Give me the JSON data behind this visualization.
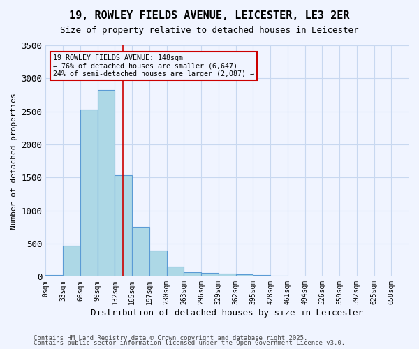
{
  "title": "19, ROWLEY FIELDS AVENUE, LEICESTER, LE3 2ER",
  "subtitle": "Size of property relative to detached houses in Leicester",
  "xlabel": "Distribution of detached houses by size in Leicester",
  "ylabel": "Number of detached properties",
  "bin_labels": [
    "0sqm",
    "33sqm",
    "66sqm",
    "99sqm",
    "132sqm",
    "165sqm",
    "197sqm",
    "230sqm",
    "263sqm",
    "296sqm",
    "329sqm",
    "362sqm",
    "395sqm",
    "428sqm",
    "461sqm",
    "494sqm",
    "526sqm",
    "559sqm",
    "592sqm",
    "625sqm",
    "658sqm"
  ],
  "bar_values": [
    20,
    470,
    2530,
    2820,
    1530,
    750,
    390,
    155,
    70,
    55,
    50,
    30,
    20,
    15,
    5,
    0,
    0,
    0,
    0,
    0,
    0
  ],
  "bar_color": "#add8e6",
  "bar_edge_color": "#5b9bd5",
  "bg_color": "#f0f4ff",
  "grid_color": "#c8d8f0",
  "annotation_text": "19 ROWLEY FIELDS AVENUE: 148sqm\n← 76% of detached houses are smaller (6,647)\n24% of semi-detached houses are larger (2,087) →",
  "annotation_box_color": "#cc0000",
  "ylim": [
    0,
    3500
  ],
  "footnote1": "Contains HM Land Registry data © Crown copyright and database right 2025.",
  "footnote2": "Contains public sector information licensed under the Open Government Licence v3.0."
}
